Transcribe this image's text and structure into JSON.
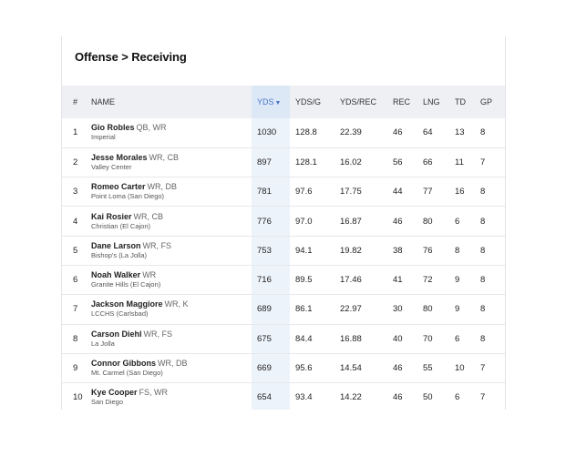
{
  "page": {
    "breadcrumb_title": "Offense > Receiving"
  },
  "table": {
    "headers": {
      "rank": "#",
      "name": "NAME",
      "yds": "YDS",
      "yds_sort_indicator": "▼",
      "ydsg": "YDS/G",
      "ydsrec": "YDS/REC",
      "rec": "REC",
      "lng": "LNG",
      "td": "TD",
      "gp": "GP"
    },
    "rows": [
      {
        "rank": "1",
        "name": "Gio Robles",
        "pos": "QB, WR",
        "school": "Imperial",
        "yds": "1030",
        "ydsg": "128.8",
        "ydsrec": "22.39",
        "rec": "46",
        "lng": "64",
        "td": "13",
        "gp": "8"
      },
      {
        "rank": "2",
        "name": "Jesse Morales",
        "pos": "WR, CB",
        "school": "Valley Center",
        "yds": "897",
        "ydsg": "128.1",
        "ydsrec": "16.02",
        "rec": "56",
        "lng": "66",
        "td": "11",
        "gp": "7"
      },
      {
        "rank": "3",
        "name": "Romeo Carter",
        "pos": "WR, DB",
        "school": "Point Loma (San Diego)",
        "yds": "781",
        "ydsg": "97.6",
        "ydsrec": "17.75",
        "rec": "44",
        "lng": "77",
        "td": "16",
        "gp": "8"
      },
      {
        "rank": "4",
        "name": "Kai Rosier",
        "pos": "WR, CB",
        "school": "Christian (El Cajon)",
        "yds": "776",
        "ydsg": "97.0",
        "ydsrec": "16.87",
        "rec": "46",
        "lng": "80",
        "td": "6",
        "gp": "8"
      },
      {
        "rank": "5",
        "name": "Dane Larson",
        "pos": "WR, FS",
        "school": "Bishop's (La Jolla)",
        "yds": "753",
        "ydsg": "94.1",
        "ydsrec": "19.82",
        "rec": "38",
        "lng": "76",
        "td": "8",
        "gp": "8"
      },
      {
        "rank": "6",
        "name": "Noah Walker",
        "pos": "WR",
        "school": "Granite Hills (El Cajon)",
        "yds": "716",
        "ydsg": "89.5",
        "ydsrec": "17.46",
        "rec": "41",
        "lng": "72",
        "td": "9",
        "gp": "8"
      },
      {
        "rank": "7",
        "name": "Jackson Maggiore",
        "pos": "WR, K",
        "school": "LCCHS (Carlsbad)",
        "yds": "689",
        "ydsg": "86.1",
        "ydsrec": "22.97",
        "rec": "30",
        "lng": "80",
        "td": "9",
        "gp": "8"
      },
      {
        "rank": "8",
        "name": "Carson Diehl",
        "pos": "WR, FS",
        "school": "La Jolla",
        "yds": "675",
        "ydsg": "84.4",
        "ydsrec": "16.88",
        "rec": "40",
        "lng": "70",
        "td": "6",
        "gp": "8"
      },
      {
        "rank": "9",
        "name": "Connor Gibbons",
        "pos": "WR, DB",
        "school": "Mt. Carmel (San Diego)",
        "yds": "669",
        "ydsg": "95.6",
        "ydsrec": "14.54",
        "rec": "46",
        "lng": "55",
        "td": "10",
        "gp": "7"
      },
      {
        "rank": "10",
        "name": "Kye Cooper",
        "pos": "FS, WR",
        "school": "San Diego",
        "yds": "654",
        "ydsg": "93.4",
        "ydsrec": "14.22",
        "rec": "46",
        "lng": "50",
        "td": "6",
        "gp": "7"
      }
    ]
  },
  "colors": {
    "sorted_header_bg": "#dde8f7",
    "sorted_column_bg": "#edf3fb",
    "header_bg": "#eef0f4",
    "sort_accent": "#4a78c9"
  }
}
